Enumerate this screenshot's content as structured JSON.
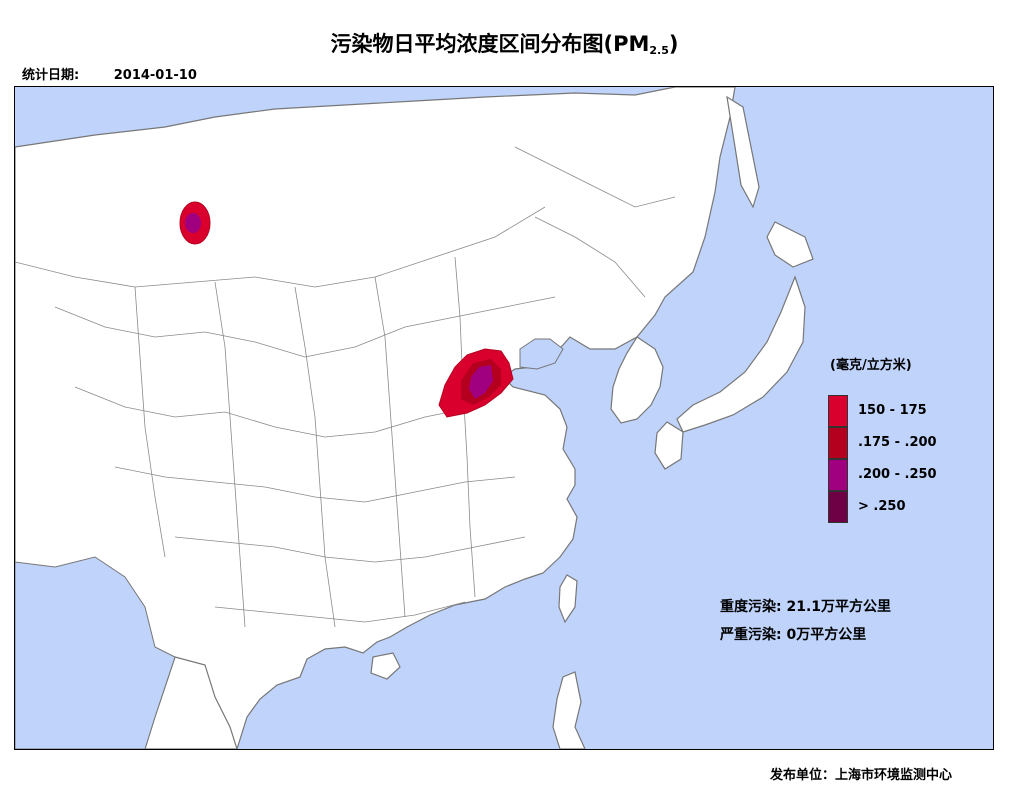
{
  "title": {
    "main": "污染物日平均浓度区间分布图(PM",
    "subscript": "2.5",
    "close": ")"
  },
  "stat_date": {
    "label": "统计日期:",
    "value": "2014-01-10"
  },
  "legend": {
    "unit": "(毫克/立方米)",
    "items": [
      {
        "label": "150 - 175",
        "color": "#d9002e"
      },
      {
        "label": ".175 - .200",
        "color": "#b4001e"
      },
      {
        "label": ".200 - .250",
        "color": "#a00080"
      },
      {
        "label": "> .250",
        "color": "#6e0046"
      }
    ]
  },
  "stats": {
    "heavy": "重度污染: 21.1万平方公里",
    "severe": "严重污染: 0万平方公里"
  },
  "publisher": "发布单位：上海市环境监测中心",
  "colors": {
    "sea": "#bfd3fb",
    "land": "#ffffff",
    "border": "#8a8a8a"
  }
}
